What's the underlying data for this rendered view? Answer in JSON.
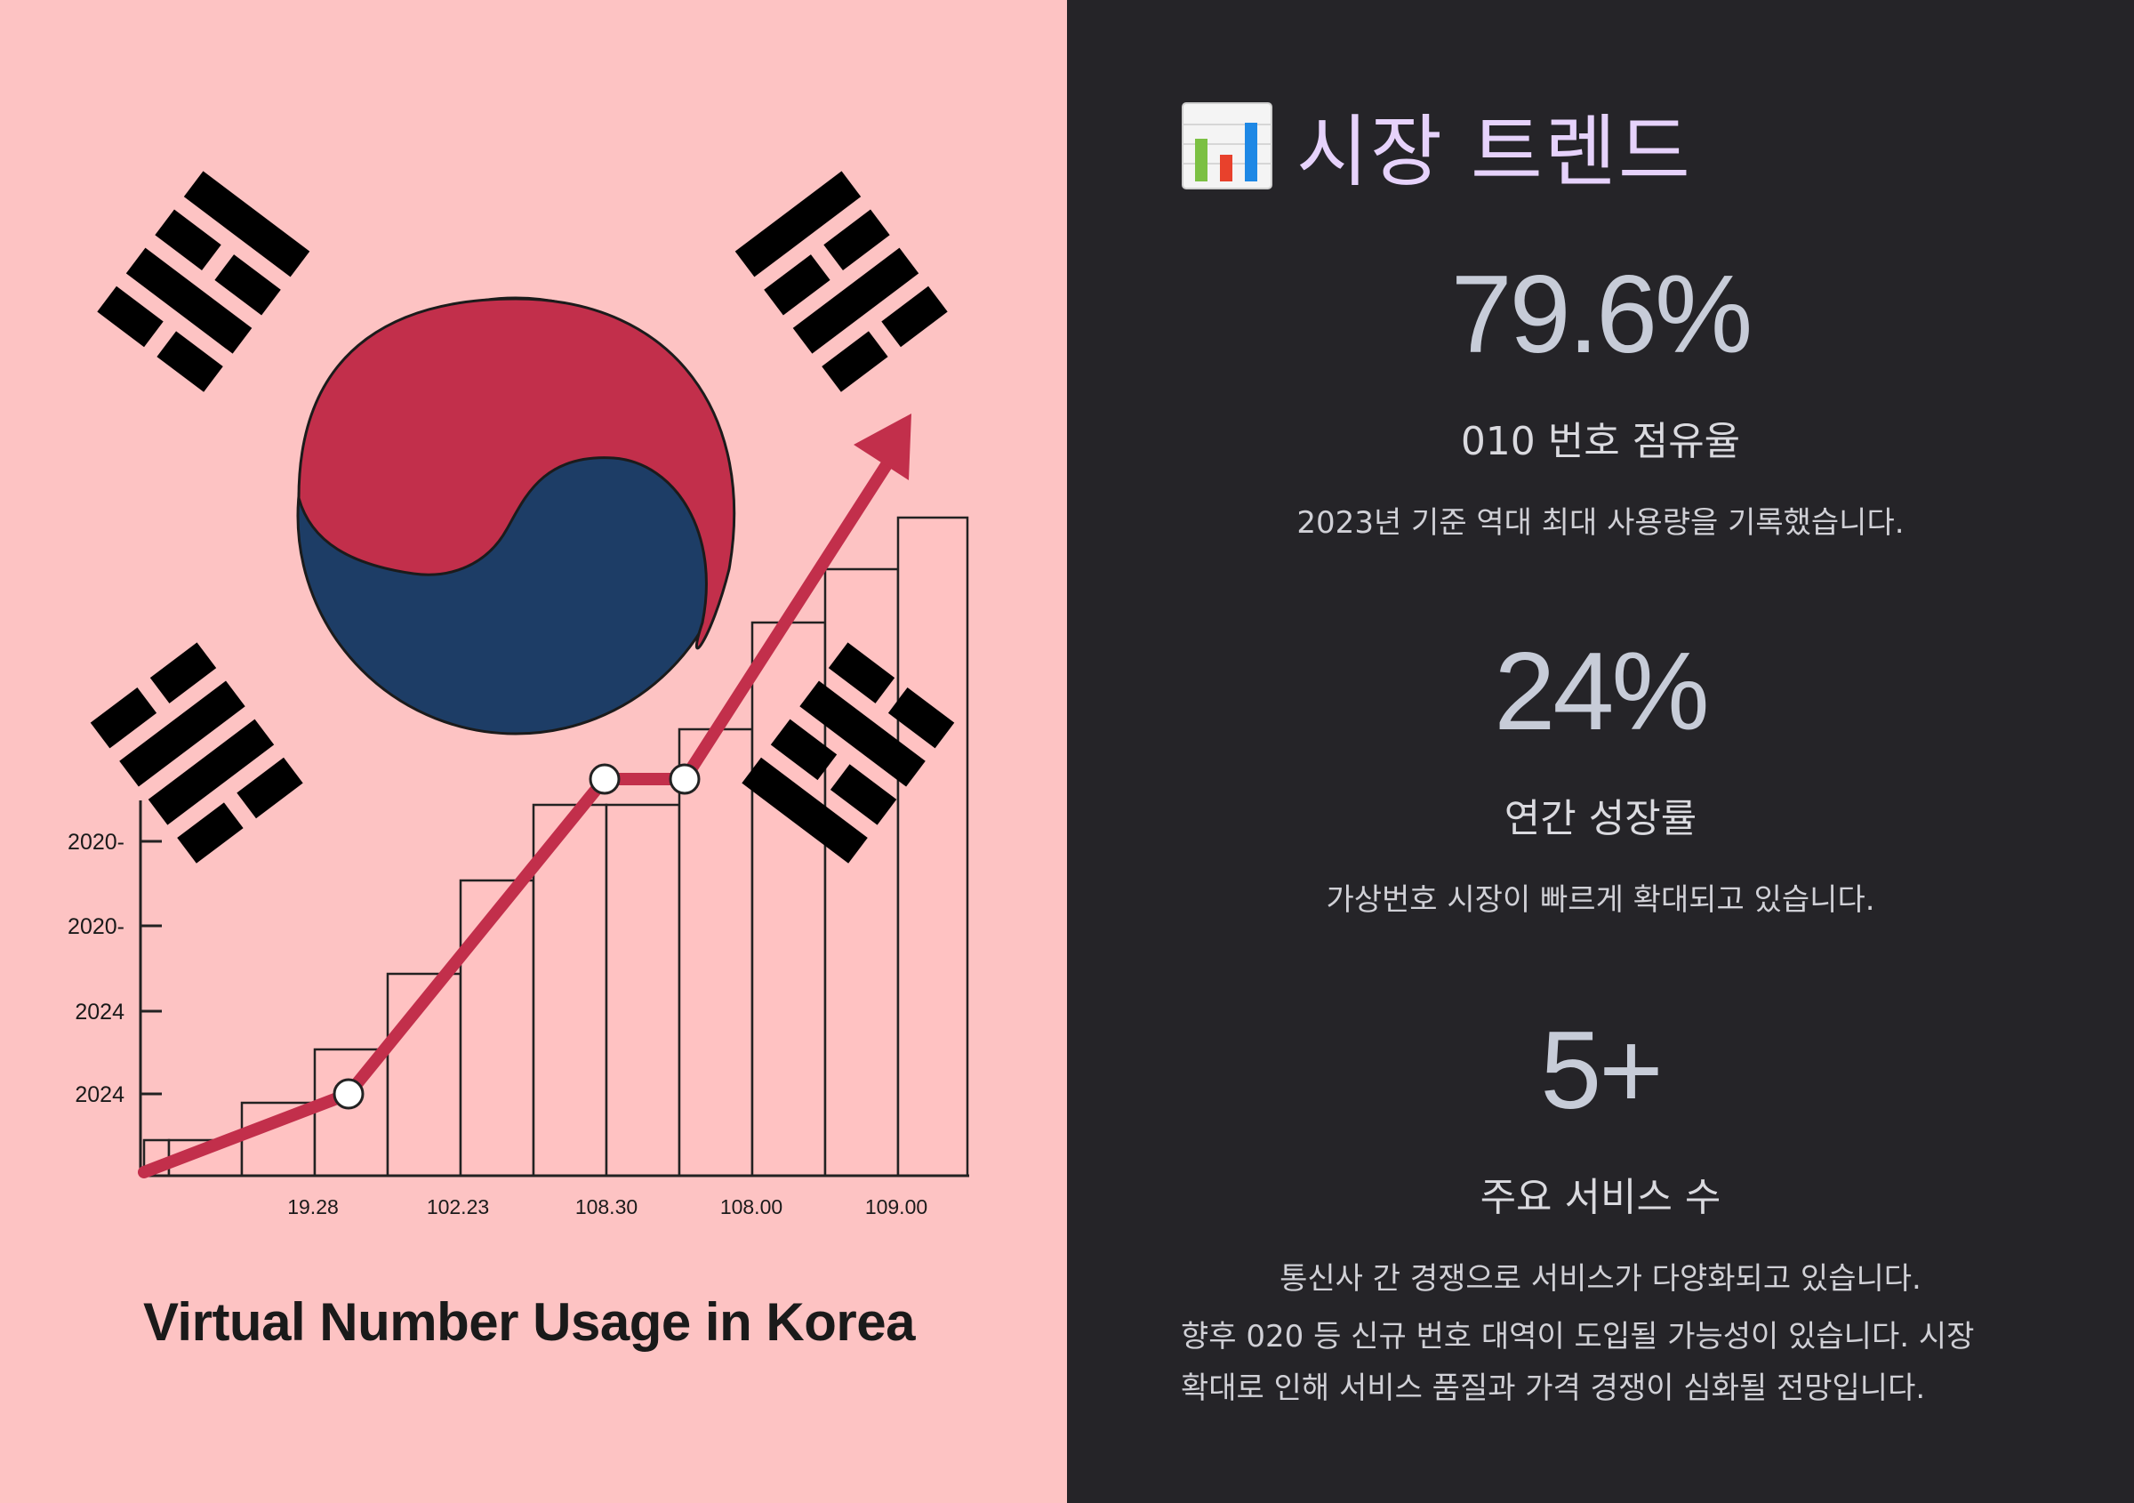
{
  "chart_data": {
    "type": "line",
    "title": "Virtual Number Usage in Korea",
    "x_tick_labels": [
      "19.28",
      "102.23",
      "108.30",
      "108.00",
      "109.00"
    ],
    "y_tick_labels": [
      "2020-",
      "2020-",
      "2024",
      "2024"
    ],
    "series_color": "#c22f4b",
    "bar_fill": "#ffc2c2",
    "grid": false
  },
  "flag_colors": {
    "red": "#c22f4b",
    "blue": "#1d3d66",
    "black": "#000000"
  },
  "icons": {
    "heading": "bar-chart-icon"
  },
  "panel": {
    "heading": "시장 트렌드",
    "stats": [
      {
        "value": "79.6%",
        "label": "010 번호 점유율",
        "desc": "2023년 기준 역대 최대 사용량을 기록했습니다."
      },
      {
        "value": "24%",
        "label": "연간 성장률",
        "desc": "가상번호 시장이 빠르게 확대되고 있습니다."
      },
      {
        "value": "5+",
        "label": "주요 서비스 수",
        "desc": "통신사 간 경쟁으로 서비스가 다양화되고 있습니다."
      }
    ],
    "note_lines": [
      "향후 020 등 신규 번호 대역이 도입될 가능성이 있습니다. 시장",
      "확대로 인해 서비스 품질과 가격 경쟁이 심화될 전망입니다."
    ]
  }
}
